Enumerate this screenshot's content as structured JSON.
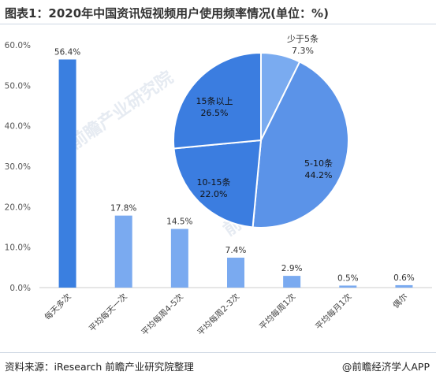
{
  "title": "图表1：2020年中国资讯短视频用户使用频率情况(单位：%)",
  "source": "资料来源：iResearch 前瞻产业研究院整理",
  "brand": "@前瞻经济学人APP",
  "watermark": "前瞻产业研究院",
  "colors": {
    "bar_dark": "#3a7fe0",
    "bar_light": "#7aaaf0",
    "pie_dark": "#3b7de0",
    "pie_mid": "#5b93e8",
    "pie_light": "#7aabf0"
  },
  "chart_data": [
    {
      "type": "bar",
      "categories": [
        "每天多次",
        "平均每天一次",
        "平均每周4-5次",
        "平均每周2-3次",
        "平均每周1次",
        "平均每月1次",
        "偶尔"
      ],
      "values": [
        56.4,
        17.8,
        14.5,
        7.4,
        2.9,
        0.5,
        0.6
      ],
      "value_labels": [
        "56.4%",
        "17.8%",
        "14.5%",
        "7.4%",
        "2.9%",
        "0.5%",
        "0.6%"
      ],
      "ylim": [
        0,
        60
      ],
      "yticks": [
        "0.0%",
        "10.0%",
        "20.0%",
        "30.0%",
        "40.0%",
        "50.0%",
        "60.0%"
      ],
      "grid": false
    },
    {
      "type": "pie",
      "labels": [
        "少于5条",
        "5-10条",
        "10-15条",
        "15条以上"
      ],
      "values": [
        7.3,
        44.2,
        22.0,
        26.5
      ],
      "value_labels": [
        "7.3%",
        "44.2%",
        "22.0%",
        "26.5%"
      ]
    }
  ]
}
